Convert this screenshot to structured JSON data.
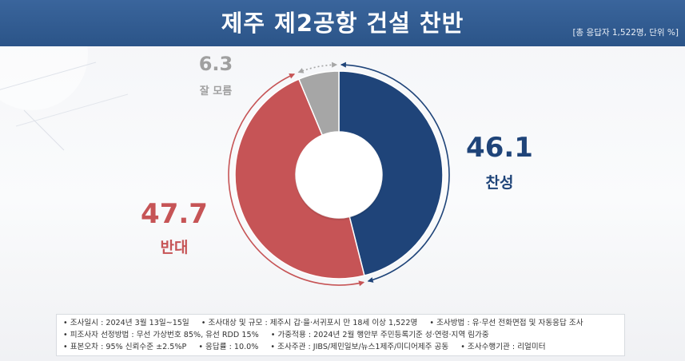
{
  "header": {
    "title": "제주 제2공항 건설 찬반",
    "meta": "[총 응답자 1,522명, 단위 %]"
  },
  "chart_data": {
    "type": "pie",
    "donut": true,
    "slices": [
      {
        "label": "찬성",
        "value": 46.1,
        "value_text": "46.1",
        "color": "#1f4479"
      },
      {
        "label": "반대",
        "value": 47.7,
        "value_text": "47.7",
        "color": "#c65456"
      },
      {
        "label": "잘 모름",
        "value": 6.3,
        "value_text": "6.3",
        "color": "#a6a6a6"
      }
    ]
  },
  "footer": {
    "rows": [
      [
        "• 조사일시 : 2024년 3월 13일~15일",
        "• 조사대상 및 규모 : 제주시 갑·을·서귀포시 만 18세 이상 1,522명",
        "• 조사방법 : 유·무선 전화면접 및 자동응답 조사"
      ],
      [
        "• 피조사자 선정방법 : 무선 가상번호 85%, 유선 RDD 15%",
        "• 가중적용 : 2024년 2월 행안부 주민등록기준 성·연령·지역 림가중"
      ],
      [
        "• 표본오차 : 95% 신뢰수준 ±2.5%P",
        "• 응답률 : 10.0%",
        "• 조사주관 : JIBS/제민일보/뉴스1제주/미디어제주 공동",
        "• 조사수행기관 : 리얼미터"
      ]
    ]
  }
}
